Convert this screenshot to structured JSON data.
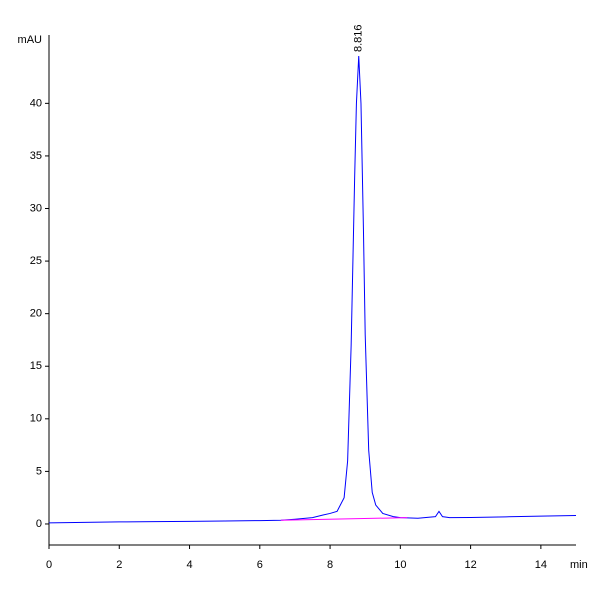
{
  "chart_data": {
    "type": "line",
    "y_label": "mAU",
    "x_label": "min",
    "peak_label": "8.816",
    "xlim": [
      0,
      15
    ],
    "ylim": [
      -2,
      46.5
    ],
    "xticks": [
      0,
      2,
      4,
      6,
      8,
      10,
      12,
      14
    ],
    "yticks": [
      0,
      5,
      10,
      15,
      20,
      25,
      30,
      35,
      40
    ],
    "series": [
      {
        "color": "#0000ff",
        "x": [
          0,
          1,
          2,
          3,
          4,
          5,
          6,
          6.6,
          7,
          7.5,
          7.8,
          8.0,
          8.2,
          8.4,
          8.5,
          8.6,
          8.7,
          8.75,
          8.816,
          8.88,
          8.95,
          9.0,
          9.1,
          9.2,
          9.3,
          9.5,
          9.8,
          10,
          10.5,
          11,
          11.1,
          11.2,
          11.4,
          12,
          13,
          14,
          15
        ],
        "values": [
          0.1,
          0.15,
          0.2,
          0.22,
          0.25,
          0.28,
          0.32,
          0.35,
          0.45,
          0.6,
          0.85,
          1.0,
          1.2,
          2.5,
          6,
          17,
          33,
          40,
          44.5,
          40,
          28,
          18,
          7,
          3,
          1.8,
          1.0,
          0.7,
          0.6,
          0.55,
          0.7,
          1.2,
          0.7,
          0.6,
          0.62,
          0.68,
          0.75,
          0.8
        ]
      },
      {
        "color": "#ff00ff",
        "x": [
          6.6,
          10.2
        ],
        "values": [
          0.35,
          0.6
        ]
      }
    ]
  }
}
